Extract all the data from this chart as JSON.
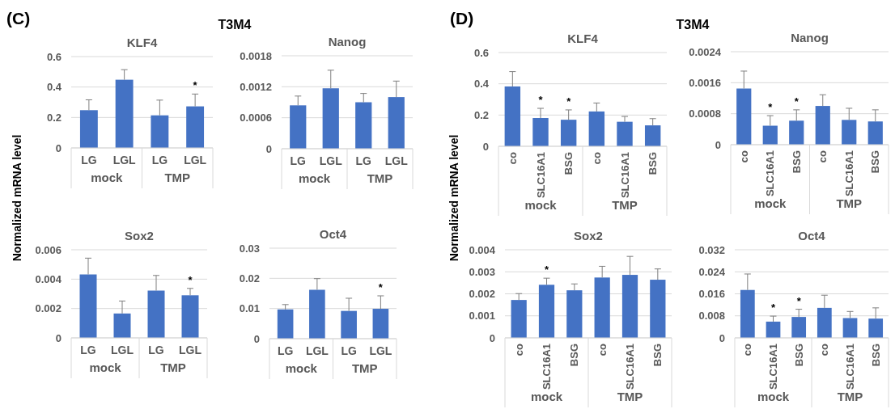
{
  "chart_data": [
    {
      "type": "bar",
      "title": "KLF4",
      "ylabel": "Normalized mRNA level",
      "categories": [
        "LG",
        "LGL",
        "LG",
        "LGL"
      ],
      "values": [
        0.248,
        0.448,
        0.214,
        0.273
      ],
      "errors": [
        [
          0.248,
          0.316
        ],
        [
          0.448,
          0.514
        ],
        [
          0.214,
          0.314
        ],
        [
          0.273,
          0.354
        ]
      ],
      "value_labels": [
        null,
        null,
        null,
        "*"
      ],
      "color": "#4472c4",
      "ylim": [
        0,
        0.6
      ],
      "yticks": [
        0,
        0.2,
        0.4,
        0.6
      ],
      "grid": "y",
      "annotations": [
        "(C)",
        "T3M4",
        "mock",
        "TMP"
      ]
    },
    {
      "type": "bar",
      "title": "Nanog",
      "categories": [
        "LG",
        "LGL",
        "LG",
        "LGL"
      ],
      "values": [
        0.00084,
        0.00117,
        0.0009,
        0.001
      ],
      "errors": [
        [
          0.00084,
          0.00102
        ],
        [
          0.00117,
          0.00152
        ],
        [
          0.0009,
          0.00107
        ],
        [
          0.001,
          0.00131
        ]
      ],
      "color": "#4472c4",
      "ylim": [
        0,
        0.0018
      ],
      "yticks": [
        0,
        0.0006,
        0.0012,
        0.0018
      ],
      "grid": "y",
      "annotations": [
        "mock",
        "TMP"
      ]
    },
    {
      "type": "bar",
      "title": "Sox2",
      "categories": [
        "LG",
        "LGL",
        "LG",
        "LGL"
      ],
      "values": [
        0.00432,
        0.00166,
        0.00322,
        0.0029
      ],
      "errors": [
        [
          0.00432,
          0.00543
        ],
        [
          0.00166,
          0.00251
        ],
        [
          0.00322,
          0.00425
        ],
        [
          0.0029,
          0.00337
        ]
      ],
      "value_labels": [
        null,
        null,
        null,
        "*"
      ],
      "color": "#4472c4",
      "ylim": [
        0,
        0.006
      ],
      "yticks": [
        0,
        0.002,
        0.004,
        0.006
      ],
      "grid": "y",
      "annotations": [
        "mock",
        "TMP"
      ]
    },
    {
      "type": "bar",
      "title": "Oct4",
      "categories": [
        "LG",
        "LGL",
        "LG",
        "LGL"
      ],
      "values": [
        0.0097,
        0.0162,
        0.0092,
        0.0099
      ],
      "errors": [
        [
          0.0097,
          0.0113
        ],
        [
          0.0162,
          0.0199
        ],
        [
          0.0092,
          0.0134
        ],
        [
          0.0099,
          0.0142
        ]
      ],
      "value_labels": [
        null,
        null,
        null,
        "*"
      ],
      "color": "#4472c4",
      "ylim": [
        0,
        0.03
      ],
      "yticks": [
        0,
        0.01,
        0.02,
        0.03
      ],
      "grid": "y",
      "annotations": [
        "mock",
        "TMP"
      ]
    },
    {
      "type": "bar",
      "title": "KLF4",
      "ylabel": "Normalized mRNA level",
      "categories": [
        "co",
        "SLC16A1",
        "BSG",
        "co",
        "SLC16A1",
        "BSG"
      ],
      "values": [
        0.383,
        0.181,
        0.17,
        0.223,
        0.157,
        0.134
      ],
      "errors": [
        [
          0.383,
          0.478
        ],
        [
          0.181,
          0.243
        ],
        [
          0.17,
          0.233
        ],
        [
          0.223,
          0.277
        ],
        [
          0.157,
          0.191
        ],
        [
          0.134,
          0.177
        ]
      ],
      "value_labels": [
        null,
        "*",
        "*",
        null,
        null,
        null
      ],
      "color": "#4472c4",
      "ylim": [
        0,
        0.6
      ],
      "yticks": [
        0,
        0.2,
        0.4,
        0.6
      ],
      "grid": "y",
      "annotations": [
        "(D)",
        "T3M4",
        "mock",
        "TMP"
      ]
    },
    {
      "type": "bar",
      "title": "Nanog",
      "categories": [
        "co",
        "SLC16A1",
        "BSG",
        "co",
        "SLC16A1",
        "BSG"
      ],
      "values": [
        0.00145,
        0.00049,
        0.00062,
        0.001,
        0.00064,
        0.0006
      ],
      "errors": [
        [
          0.00145,
          0.0019
        ],
        [
          0.00049,
          0.00075
        ],
        [
          0.00062,
          0.0009
        ],
        [
          0.001,
          0.00129
        ],
        [
          0.00064,
          0.00094
        ],
        [
          0.0006,
          0.0009
        ]
      ],
      "value_labels": [
        null,
        "*",
        "*",
        null,
        null,
        null
      ],
      "color": "#4472c4",
      "ylim": [
        0,
        0.0024
      ],
      "yticks": [
        0,
        0.0008,
        0.0016,
        0.0024
      ],
      "grid": "y",
      "annotations": [
        "mock",
        "TMP"
      ]
    },
    {
      "type": "bar",
      "title": "Sox2",
      "categories": [
        "co",
        "SLC16A1",
        "BSG",
        "co",
        "SLC16A1",
        "BSG"
      ],
      "values": [
        0.00172,
        0.00241,
        0.00216,
        0.00274,
        0.00286,
        0.00264
      ],
      "errors": [
        [
          0.00172,
          0.00201
        ],
        [
          0.00241,
          0.00271
        ],
        [
          0.00216,
          0.00245
        ],
        [
          0.00274,
          0.00325
        ],
        [
          0.00286,
          0.0037
        ],
        [
          0.00264,
          0.00313
        ]
      ],
      "value_labels": [
        null,
        "*",
        null,
        null,
        null,
        null
      ],
      "color": "#4472c4",
      "ylim": [
        0,
        0.004
      ],
      "yticks": [
        0,
        0.001,
        0.002,
        0.003,
        0.004
      ],
      "grid": "y",
      "annotations": [
        "mock",
        "TMP"
      ]
    },
    {
      "type": "bar",
      "title": "Oct4",
      "categories": [
        "co",
        "SLC16A1",
        "BSG",
        "co",
        "SLC16A1",
        "BSG"
      ],
      "values": [
        0.0174,
        0.0059,
        0.0076,
        0.0109,
        0.0072,
        0.007
      ],
      "errors": [
        [
          0.0174,
          0.0232
        ],
        [
          0.0059,
          0.0079
        ],
        [
          0.0076,
          0.0104
        ],
        [
          0.0109,
          0.0155
        ],
        [
          0.0072,
          0.0096
        ],
        [
          0.007,
          0.0109
        ]
      ],
      "value_labels": [
        null,
        "*",
        "*",
        null,
        null,
        null
      ],
      "color": "#4472c4",
      "ylim": [
        0,
        0.032
      ],
      "yticks": [
        0,
        0.008,
        0.016,
        0.024,
        0.032
      ],
      "grid": "y",
      "annotations": [
        "mock",
        "TMP"
      ]
    }
  ]
}
